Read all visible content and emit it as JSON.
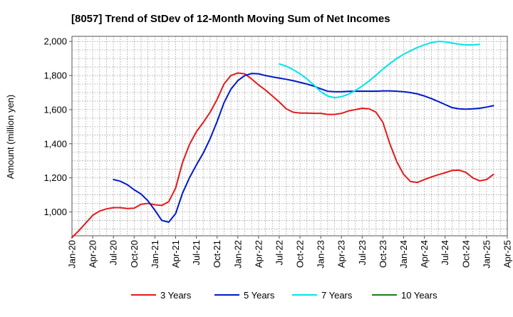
{
  "chart_data": {
    "type": "line",
    "title": "[8057]  Trend of StDev of 12-Month Moving Sum of Net Incomes",
    "ylabel": "Amount (million yen)",
    "xlabel": "",
    "ylim": [
      860,
      2030
    ],
    "yticks": [
      1000,
      1200,
      1400,
      1600,
      1800,
      2000
    ],
    "ytick_labels": [
      "1,000",
      "1,200",
      "1,400",
      "1,600",
      "1,800",
      "2,000"
    ],
    "x_start": "2020-01",
    "x_end": "2025-04",
    "xtick_labels": [
      "Jan-20",
      "Apr-20",
      "Jul-20",
      "Oct-20",
      "Jan-21",
      "Apr-21",
      "Jul-21",
      "Oct-21",
      "Jan-22",
      "Apr-22",
      "Jul-22",
      "Oct-22",
      "Jan-23",
      "Apr-23",
      "Jul-23",
      "Oct-23",
      "Jan-24",
      "Apr-24",
      "Jul-24",
      "Oct-24",
      "Jan-25",
      "Apr-25"
    ],
    "grid": true,
    "legend_position": "bottom",
    "series": [
      {
        "name": "3 Years",
        "color": "#e31a1c",
        "points": [
          [
            "2020-01",
            850
          ],
          [
            "2020-02",
            890
          ],
          [
            "2020-03",
            935
          ],
          [
            "2020-04",
            980
          ],
          [
            "2020-05",
            1005
          ],
          [
            "2020-06",
            1018
          ],
          [
            "2020-07",
            1025
          ],
          [
            "2020-08",
            1025
          ],
          [
            "2020-09",
            1020
          ],
          [
            "2020-10",
            1022
          ],
          [
            "2020-11",
            1045
          ],
          [
            "2020-12",
            1050
          ],
          [
            "2021-01",
            1042
          ],
          [
            "2021-02",
            1038
          ],
          [
            "2021-03",
            1060
          ],
          [
            "2021-04",
            1140
          ],
          [
            "2021-05",
            1290
          ],
          [
            "2021-06",
            1395
          ],
          [
            "2021-07",
            1470
          ],
          [
            "2021-08",
            1525
          ],
          [
            "2021-09",
            1585
          ],
          [
            "2021-10",
            1660
          ],
          [
            "2021-11",
            1750
          ],
          [
            "2021-12",
            1800
          ],
          [
            "2022-01",
            1815
          ],
          [
            "2022-02",
            1810
          ],
          [
            "2022-03",
            1780
          ],
          [
            "2022-04",
            1745
          ],
          [
            "2022-05",
            1715
          ],
          [
            "2022-06",
            1680
          ],
          [
            "2022-07",
            1645
          ],
          [
            "2022-08",
            1605
          ],
          [
            "2022-09",
            1585
          ],
          [
            "2022-10",
            1580
          ],
          [
            "2022-11",
            1580
          ],
          [
            "2022-12",
            1578
          ],
          [
            "2023-01",
            1578
          ],
          [
            "2023-02",
            1572
          ],
          [
            "2023-03",
            1572
          ],
          [
            "2023-04",
            1578
          ],
          [
            "2023-05",
            1592
          ],
          [
            "2023-06",
            1600
          ],
          [
            "2023-07",
            1608
          ],
          [
            "2023-08",
            1605
          ],
          [
            "2023-09",
            1585
          ],
          [
            "2023-10",
            1525
          ],
          [
            "2023-11",
            1400
          ],
          [
            "2023-12",
            1295
          ],
          [
            "2024-01",
            1220
          ],
          [
            "2024-02",
            1178
          ],
          [
            "2024-03",
            1173
          ],
          [
            "2024-04",
            1190
          ],
          [
            "2024-05",
            1205
          ],
          [
            "2024-06",
            1218
          ],
          [
            "2024-07",
            1230
          ],
          [
            "2024-08",
            1243
          ],
          [
            "2024-09",
            1245
          ],
          [
            "2024-10",
            1232
          ],
          [
            "2024-11",
            1200
          ],
          [
            "2024-12",
            1182
          ],
          [
            "2025-01",
            1190
          ],
          [
            "2025-02",
            1220
          ]
        ]
      },
      {
        "name": "5 Years",
        "color": "#0019c8",
        "points": [
          [
            "2020-07",
            1190
          ],
          [
            "2020-08",
            1180
          ],
          [
            "2020-09",
            1160
          ],
          [
            "2020-10",
            1130
          ],
          [
            "2020-11",
            1105
          ],
          [
            "2020-12",
            1065
          ],
          [
            "2021-01",
            1010
          ],
          [
            "2021-02",
            950
          ],
          [
            "2021-03",
            940
          ],
          [
            "2021-04",
            990
          ],
          [
            "2021-05",
            1110
          ],
          [
            "2021-06",
            1200
          ],
          [
            "2021-07",
            1275
          ],
          [
            "2021-08",
            1345
          ],
          [
            "2021-09",
            1430
          ],
          [
            "2021-10",
            1530
          ],
          [
            "2021-11",
            1640
          ],
          [
            "2021-12",
            1720
          ],
          [
            "2022-01",
            1770
          ],
          [
            "2022-02",
            1800
          ],
          [
            "2022-03",
            1812
          ],
          [
            "2022-04",
            1810
          ],
          [
            "2022-05",
            1800
          ],
          [
            "2022-06",
            1792
          ],
          [
            "2022-07",
            1785
          ],
          [
            "2022-08",
            1778
          ],
          [
            "2022-09",
            1770
          ],
          [
            "2022-10",
            1760
          ],
          [
            "2022-11",
            1750
          ],
          [
            "2022-12",
            1738
          ],
          [
            "2023-01",
            1722
          ],
          [
            "2023-02",
            1708
          ],
          [
            "2023-03",
            1705
          ],
          [
            "2023-04",
            1705
          ],
          [
            "2023-05",
            1707
          ],
          [
            "2023-06",
            1708
          ],
          [
            "2023-07",
            1708
          ],
          [
            "2023-08",
            1708
          ],
          [
            "2023-09",
            1708
          ],
          [
            "2023-10",
            1710
          ],
          [
            "2023-11",
            1710
          ],
          [
            "2023-12",
            1708
          ],
          [
            "2024-01",
            1705
          ],
          [
            "2024-02",
            1700
          ],
          [
            "2024-03",
            1692
          ],
          [
            "2024-04",
            1680
          ],
          [
            "2024-05",
            1665
          ],
          [
            "2024-06",
            1648
          ],
          [
            "2024-07",
            1630
          ],
          [
            "2024-08",
            1612
          ],
          [
            "2024-09",
            1605
          ],
          [
            "2024-10",
            1603
          ],
          [
            "2024-11",
            1605
          ],
          [
            "2024-12",
            1608
          ],
          [
            "2025-01",
            1615
          ],
          [
            "2025-02",
            1623
          ]
        ]
      },
      {
        "name": "7 Years",
        "color": "#00e5e5",
        "points": [
          [
            "2022-07",
            1868
          ],
          [
            "2022-08",
            1855
          ],
          [
            "2022-09",
            1835
          ],
          [
            "2022-10",
            1810
          ],
          [
            "2022-11",
            1780
          ],
          [
            "2022-12",
            1745
          ],
          [
            "2023-01",
            1705
          ],
          [
            "2023-02",
            1680
          ],
          [
            "2023-03",
            1670
          ],
          [
            "2023-04",
            1676
          ],
          [
            "2023-05",
            1690
          ],
          [
            "2023-06",
            1712
          ],
          [
            "2023-07",
            1738
          ],
          [
            "2023-08",
            1768
          ],
          [
            "2023-09",
            1802
          ],
          [
            "2023-10",
            1838
          ],
          [
            "2023-11",
            1870
          ],
          [
            "2023-12",
            1900
          ],
          [
            "2024-01",
            1925
          ],
          [
            "2024-02",
            1945
          ],
          [
            "2024-03",
            1965
          ],
          [
            "2024-04",
            1980
          ],
          [
            "2024-05",
            1993
          ],
          [
            "2024-06",
            2000
          ],
          [
            "2024-07",
            1998
          ],
          [
            "2024-08",
            1990
          ],
          [
            "2024-09",
            1984
          ],
          [
            "2024-10",
            1980
          ],
          [
            "2024-11",
            1980
          ],
          [
            "2024-12",
            1983
          ]
        ]
      },
      {
        "name": "10 Years",
        "color": "#1a7f1a",
        "points": []
      }
    ]
  }
}
